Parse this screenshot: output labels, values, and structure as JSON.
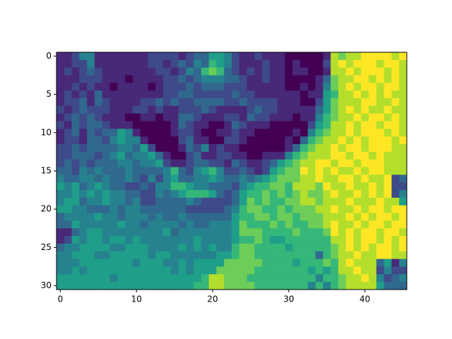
{
  "chart_data": {
    "type": "heatmap",
    "colormap": "viridis",
    "xlim": [
      -0.5,
      45.5
    ],
    "ylim": [
      30.5,
      -0.5
    ],
    "xticks": [
      0,
      10,
      20,
      30,
      40
    ],
    "yticks": [
      0,
      5,
      10,
      15,
      20,
      25,
      30
    ],
    "z": [
      [
        1,
        1,
        2,
        4,
        4,
        1,
        1,
        1,
        1,
        1,
        1,
        1,
        2,
        2,
        2,
        2,
        1,
        2,
        3,
        3,
        5,
        5,
        4,
        2,
        1,
        1,
        2,
        1,
        1,
        1,
        0,
        0,
        0,
        0,
        0,
        1,
        8,
        7,
        8,
        8,
        9,
        9,
        9,
        9,
        8,
        9
      ],
      [
        1,
        1,
        2,
        2,
        4,
        1,
        1,
        1,
        1,
        1,
        1,
        1,
        2,
        2,
        1,
        2,
        3,
        2,
        4,
        3,
        6,
        5,
        4,
        2,
        1,
        1,
        1,
        2,
        1,
        1,
        0,
        1,
        0,
        0,
        0,
        2,
        8,
        9,
        8,
        9,
        9,
        9,
        8,
        9,
        9,
        8
      ],
      [
        1,
        2,
        1,
        2,
        3,
        2,
        1,
        1,
        1,
        1,
        1,
        1,
        1,
        2,
        2,
        1,
        2,
        4,
        3,
        6,
        7,
        6,
        3,
        2,
        1,
        2,
        1,
        2,
        1,
        1,
        0,
        1,
        1,
        0,
        0,
        1,
        8,
        8,
        9,
        8,
        9,
        9,
        9,
        8,
        9,
        8
      ],
      [
        1,
        1,
        1,
        2,
        2,
        2,
        1,
        1,
        1,
        0,
        1,
        1,
        1,
        1,
        2,
        2,
        3,
        2,
        3,
        4,
        4,
        4,
        3,
        3,
        2,
        1,
        1,
        2,
        1,
        1,
        0,
        0,
        0,
        0,
        1,
        3,
        7,
        8,
        8,
        9,
        9,
        8,
        9,
        8,
        9,
        8
      ],
      [
        1,
        1,
        2,
        1,
        2,
        1,
        1,
        0,
        1,
        1,
        1,
        1,
        0,
        1,
        2,
        2,
        2,
        3,
        2,
        3,
        3,
        3,
        2,
        2,
        2,
        1,
        1,
        1,
        1,
        1,
        0,
        0,
        1,
        0,
        1,
        4,
        7,
        8,
        9,
        8,
        9,
        9,
        8,
        9,
        9,
        8
      ],
      [
        1,
        2,
        1,
        2,
        1,
        3,
        1,
        1,
        1,
        1,
        1,
        1,
        1,
        1,
        2,
        2,
        3,
        3,
        2,
        2,
        2,
        2,
        2,
        3,
        2,
        2,
        1,
        1,
        1,
        1,
        1,
        1,
        0,
        1,
        1,
        5,
        6,
        8,
        8,
        9,
        8,
        9,
        8,
        9,
        8,
        8
      ],
      [
        1,
        2,
        2,
        3,
        1,
        3,
        2,
        1,
        1,
        1,
        1,
        2,
        2,
        3,
        2,
        3,
        2,
        2,
        3,
        3,
        3,
        3,
        2,
        2,
        3,
        2,
        2,
        2,
        2,
        1,
        1,
        1,
        0,
        0,
        2,
        5,
        7,
        8,
        8,
        8,
        9,
        9,
        8,
        8,
        9,
        8
      ],
      [
        2,
        1,
        2,
        3,
        2,
        2,
        2,
        1,
        1,
        1,
        2,
        2,
        1,
        2,
        1,
        1,
        2,
        2,
        2,
        3,
        2,
        1,
        1,
        1,
        1,
        2,
        3,
        2,
        2,
        1,
        1,
        1,
        1,
        1,
        3,
        5,
        7,
        8,
        9,
        8,
        9,
        8,
        8,
        9,
        8,
        8
      ],
      [
        1,
        2,
        3,
        2,
        3,
        2,
        1,
        1,
        1,
        0,
        0,
        1,
        1,
        0,
        1,
        1,
        3,
        3,
        2,
        1,
        1,
        1,
        2,
        2,
        1,
        3,
        2,
        2,
        1,
        1,
        1,
        0,
        1,
        1,
        4,
        6,
        7,
        8,
        8,
        9,
        8,
        9,
        9,
        8,
        9,
        8
      ],
      [
        2,
        1,
        3,
        2,
        3,
        3,
        2,
        1,
        1,
        1,
        0,
        0,
        0,
        0,
        0,
        1,
        3,
        2,
        1,
        1,
        0,
        0,
        1,
        3,
        2,
        1,
        1,
        1,
        0,
        0,
        0,
        0,
        0,
        2,
        5,
        6,
        8,
        8,
        9,
        8,
        9,
        9,
        8,
        9,
        9,
        8
      ],
      [
        1,
        2,
        3,
        1,
        3,
        2,
        3,
        3,
        5,
        4,
        1,
        0,
        0,
        0,
        0,
        1,
        2,
        2,
        1,
        0,
        0,
        1,
        1,
        2,
        1,
        1,
        0,
        0,
        0,
        0,
        0,
        1,
        0,
        4,
        6,
        7,
        8,
        8,
        9,
        8,
        9,
        9,
        9,
        8,
        9,
        8
      ],
      [
        1,
        2,
        2,
        1,
        3,
        3,
        2,
        4,
        5,
        4,
        4,
        1,
        0,
        0,
        0,
        0,
        2,
        3,
        1,
        1,
        0,
        0,
        2,
        2,
        1,
        0,
        0,
        0,
        0,
        0,
        1,
        0,
        3,
        6,
        7,
        8,
        8,
        9,
        8,
        9,
        8,
        9,
        9,
        9,
        8,
        9
      ],
      [
        2,
        2,
        3,
        2,
        3,
        3,
        3,
        3,
        4,
        4,
        3,
        5,
        2,
        0,
        0,
        0,
        1,
        3,
        2,
        4,
        1,
        2,
        1,
        1,
        0,
        0,
        0,
        0,
        0,
        0,
        1,
        3,
        6,
        7,
        8,
        8,
        9,
        8,
        9,
        9,
        8,
        9,
        9,
        9,
        8,
        8
      ],
      [
        2,
        2,
        3,
        3,
        3,
        2,
        3,
        4,
        5,
        3,
        4,
        4,
        5,
        3,
        1,
        0,
        0,
        2,
        3,
        1,
        1,
        2,
        2,
        1,
        1,
        0,
        0,
        1,
        1,
        1,
        4,
        6,
        7,
        8,
        8,
        8,
        9,
        9,
        8,
        9,
        9,
        8,
        9,
        8,
        8,
        8
      ],
      [
        2,
        3,
        2,
        3,
        2,
        3,
        3,
        3,
        4,
        4,
        3,
        4,
        4,
        5,
        2,
        1,
        1,
        2,
        3,
        3,
        2,
        2,
        1,
        3,
        2,
        1,
        1,
        2,
        3,
        5,
        6,
        7,
        8,
        8,
        9,
        9,
        8,
        9,
        9,
        8,
        9,
        9,
        9,
        8,
        8,
        8
      ],
      [
        3,
        3,
        2,
        4,
        3,
        4,
        3,
        3,
        3,
        4,
        3,
        3,
        3,
        3,
        4,
        6,
        3,
        2,
        4,
        5,
        6,
        4,
        2,
        2,
        3,
        2,
        1,
        2,
        5,
        6,
        7,
        7,
        9,
        8,
        9,
        8,
        9,
        8,
        8,
        9,
        8,
        9,
        9,
        8,
        8,
        8
      ],
      [
        4,
        3,
        3,
        4,
        4,
        3,
        4,
        3,
        3,
        4,
        3,
        2,
        4,
        2,
        4,
        5,
        3,
        3,
        4,
        4,
        5,
        4,
        3,
        3,
        4,
        3,
        4,
        5,
        6,
        7,
        7,
        7,
        8,
        8,
        9,
        8,
        8,
        9,
        9,
        8,
        9,
        8,
        8,
        9,
        2,
        3
      ],
      [
        5,
        4,
        5,
        3,
        4,
        5,
        4,
        3,
        3,
        2,
        2,
        3,
        2,
        4,
        4,
        6,
        6,
        5,
        4,
        4,
        3,
        3,
        3,
        2,
        4,
        5,
        6,
        6,
        7,
        7,
        6,
        8,
        8,
        8,
        7,
        9,
        8,
        8,
        9,
        8,
        8,
        9,
        8,
        9,
        2,
        2
      ],
      [
        4,
        4,
        5,
        4,
        5,
        4,
        5,
        4,
        4,
        3,
        3,
        2,
        2,
        4,
        3,
        4,
        5,
        6,
        6,
        6,
        5,
        3,
        2,
        3,
        5,
        6,
        6,
        7,
        6,
        7,
        6,
        7,
        8,
        7,
        7,
        8,
        9,
        8,
        8,
        9,
        8,
        9,
        8,
        9,
        2,
        4
      ],
      [
        4,
        5,
        5,
        3,
        4,
        4,
        5,
        4,
        4,
        3,
        4,
        2,
        2,
        3,
        3,
        3,
        3,
        4,
        3,
        2,
        2,
        2,
        2,
        3,
        5,
        7,
        6,
        7,
        6,
        6,
        7,
        7,
        8,
        8,
        7,
        8,
        8,
        8,
        9,
        8,
        8,
        8,
        9,
        8,
        8,
        5
      ],
      [
        5,
        5,
        4,
        4,
        3,
        3,
        3,
        4,
        3,
        4,
        4,
        3,
        3,
        3,
        3,
        3,
        3,
        2,
        2,
        2,
        2,
        2,
        3,
        4,
        6,
        7,
        7,
        6,
        6,
        7,
        6,
        7,
        7,
        7,
        8,
        8,
        9,
        8,
        8,
        9,
        8,
        9,
        9,
        8,
        9,
        9
      ],
      [
        3,
        4,
        4,
        4,
        4,
        5,
        4,
        4,
        3,
        4,
        4,
        4,
        3,
        4,
        3,
        3,
        4,
        3,
        3,
        3,
        3,
        3,
        3,
        5,
        6,
        6,
        7,
        7,
        6,
        7,
        7,
        6,
        7,
        7,
        7,
        8,
        8,
        8,
        9,
        8,
        9,
        8,
        9,
        9,
        8,
        9
      ],
      [
        3,
        3,
        5,
        4,
        4,
        4,
        4,
        4,
        5,
        4,
        4,
        3,
        4,
        4,
        4,
        4,
        3,
        4,
        3,
        3,
        4,
        4,
        4,
        5,
        7,
        6,
        6,
        6,
        7,
        6,
        7,
        6,
        6,
        7,
        7,
        8,
        9,
        8,
        8,
        9,
        8,
        9,
        9,
        8,
        9,
        9
      ],
      [
        1,
        1,
        3,
        4,
        5,
        5,
        4,
        4,
        4,
        4,
        4,
        4,
        4,
        4,
        5,
        3,
        4,
        4,
        4,
        4,
        4,
        4,
        4,
        5,
        7,
        7,
        7,
        6,
        6,
        6,
        6,
        7,
        6,
        6,
        6,
        7,
        9,
        8,
        9,
        8,
        9,
        9,
        8,
        9,
        9,
        8
      ],
      [
        1,
        2,
        5,
        4,
        5,
        5,
        4,
        5,
        5,
        4,
        5,
        4,
        4,
        4,
        4,
        4,
        4,
        4,
        5,
        4,
        4,
        4,
        4,
        5,
        6,
        6,
        7,
        6,
        5,
        5,
        6,
        6,
        6,
        6,
        6,
        6,
        8,
        8,
        9,
        8,
        9,
        9,
        8,
        9,
        8,
        9
      ],
      [
        3,
        4,
        4,
        5,
        5,
        5,
        5,
        4,
        4,
        5,
        5,
        5,
        4,
        4,
        4,
        4,
        5,
        4,
        5,
        4,
        5,
        4,
        4,
        6,
        7,
        7,
        6,
        6,
        6,
        6,
        5,
        6,
        6,
        6,
        6,
        6,
        7,
        8,
        9,
        8,
        9,
        8,
        9,
        9,
        8,
        9
      ],
      [
        4,
        4,
        5,
        5,
        5,
        4,
        4,
        5,
        5,
        5,
        5,
        5,
        4,
        5,
        5,
        4,
        4,
        4,
        4,
        4,
        4,
        5,
        5,
        6,
        7,
        7,
        6,
        6,
        6,
        6,
        6,
        6,
        6,
        6,
        3,
        6,
        7,
        8,
        8,
        9,
        8,
        8,
        9,
        9,
        8,
        8
      ],
      [
        4,
        4,
        4,
        5,
        5,
        5,
        5,
        5,
        5,
        5,
        4,
        5,
        5,
        5,
        4,
        4,
        5,
        4,
        5,
        5,
        5,
        5,
        7,
        7,
        7,
        7,
        7,
        6,
        6,
        6,
        6,
        5,
        6,
        6,
        6,
        7,
        6,
        8,
        9,
        8,
        8,
        8,
        3,
        5,
        1,
        4
      ],
      [
        4,
        4,
        5,
        4,
        5,
        5,
        5,
        5,
        5,
        5,
        5,
        5,
        5,
        5,
        5,
        4,
        5,
        4,
        5,
        5,
        5,
        7,
        7,
        7,
        7,
        7,
        6,
        6,
        6,
        6,
        6,
        6,
        6,
        5,
        6,
        5,
        6,
        8,
        8,
        9,
        8,
        8,
        2,
        4,
        2,
        2
      ],
      [
        5,
        5,
        5,
        5,
        5,
        5,
        5,
        4,
        5,
        5,
        5,
        5,
        5,
        5,
        5,
        5,
        5,
        5,
        5,
        6,
        8,
        8,
        7,
        7,
        7,
        6,
        6,
        6,
        6,
        6,
        6,
        6,
        6,
        6,
        4,
        6,
        6,
        7,
        8,
        8,
        9,
        8,
        4,
        2,
        3,
        4
      ],
      [
        5,
        5,
        5,
        5,
        5,
        5,
        5,
        5,
        5,
        5,
        5,
        5,
        5,
        5,
        5,
        5,
        5,
        5,
        6,
        6,
        8,
        8,
        7,
        7,
        7,
        7,
        6,
        6,
        6,
        6,
        6,
        6,
        6,
        4,
        6,
        4,
        6,
        7,
        8,
        8,
        8,
        8,
        5,
        3,
        3,
        3
      ]
    ]
  }
}
